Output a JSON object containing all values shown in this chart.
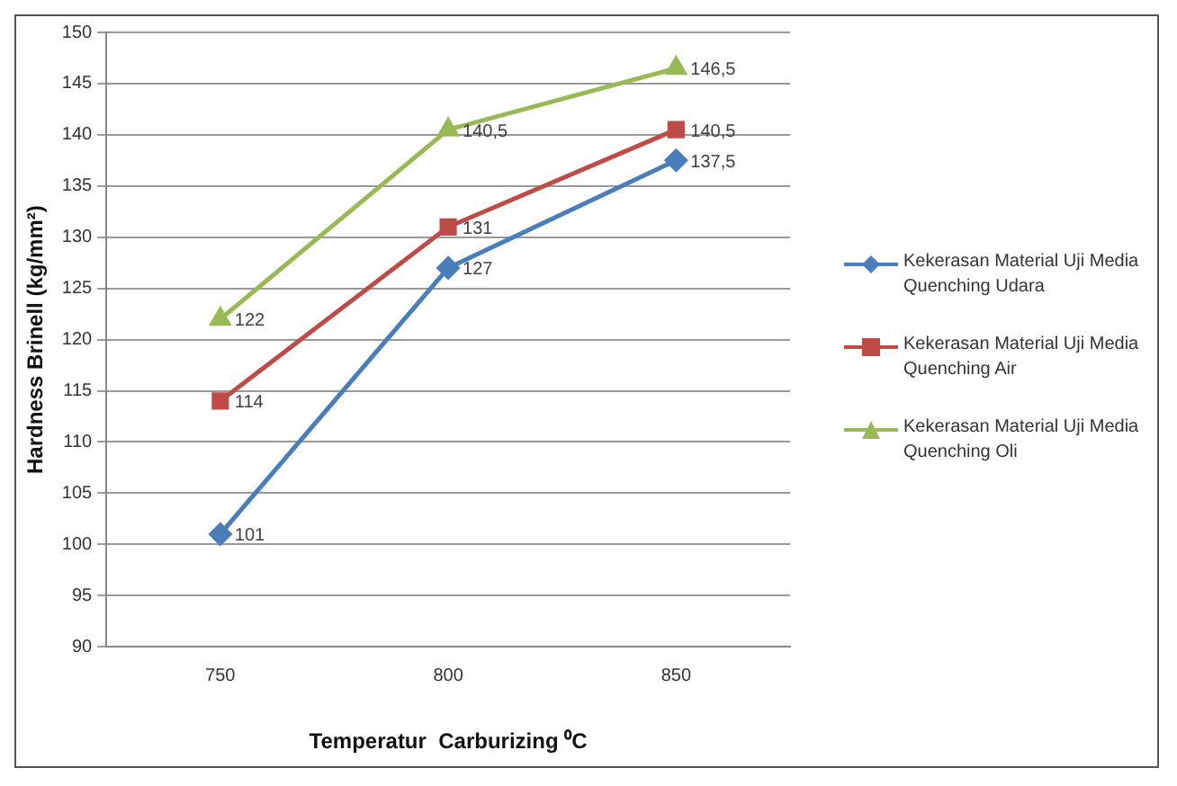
{
  "chart_data": {
    "type": "line",
    "categories": [
      "750",
      "800",
      "850"
    ],
    "xlabel": "Temperatur  Carburizing ⁰C",
    "ylabel": "Hardness Brinell (kg/mm²)",
    "ylim": [
      90,
      150
    ],
    "yticks": [
      90,
      95,
      100,
      105,
      110,
      115,
      120,
      125,
      130,
      135,
      140,
      145,
      150
    ],
    "grid": "y",
    "legend": "right",
    "series": [
      {
        "name": "Kekerasan Material Uji Media Quenching Udara",
        "color": "#4a7ebb",
        "marker": "diamond",
        "values": [
          101,
          127,
          137.5
        ],
        "value_labels": [
          "101",
          "127",
          "137,5"
        ]
      },
      {
        "name": "Kekerasan Material Uji Media Quenching Air",
        "color": "#be4b48",
        "marker": "square",
        "values": [
          114,
          131,
          140.5
        ],
        "value_labels": [
          "114",
          "131",
          "140,5"
        ]
      },
      {
        "name": "Kekerasan Material Uji Media Quenching Oli",
        "color": "#98b954",
        "marker": "triangle",
        "values": [
          122,
          140.5,
          146.5
        ],
        "value_labels": [
          "122",
          "140,5",
          "146,5"
        ]
      }
    ]
  }
}
